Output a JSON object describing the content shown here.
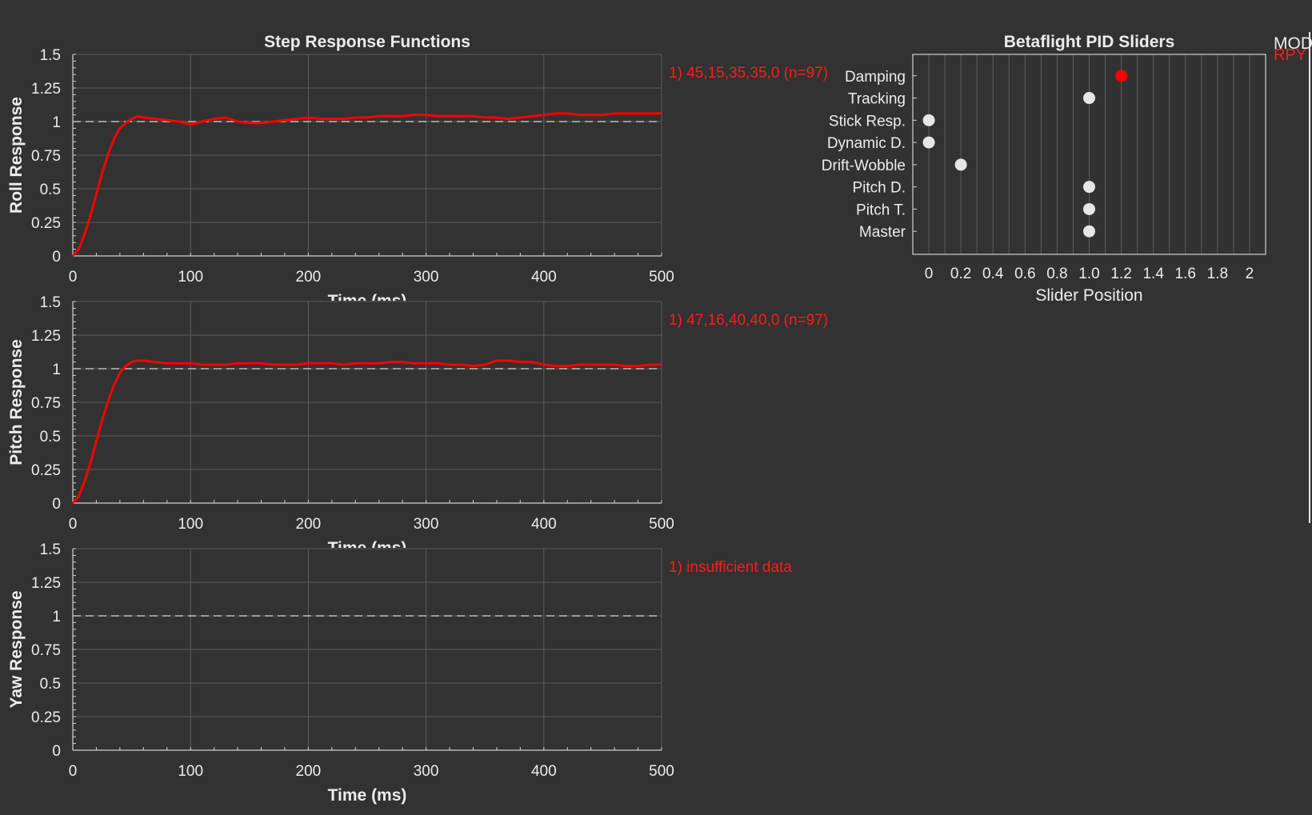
{
  "step_title": "Step Response Functions",
  "slider_title": "Betaflight PID Sliders",
  "corner_labels": {
    "mod": "MOD",
    "rpy": "RPY"
  },
  "colors": {
    "background": "#323232",
    "response": "#ff0000",
    "grid": "#5c5c5c",
    "reference": "#bdbdbd",
    "text": "#ececec",
    "marker_inactive": "#e6e6e6",
    "marker_active": "#ff0000"
  },
  "chart_data": [
    {
      "type": "line",
      "ylabel": "Roll Response",
      "xlabel": "Time (ms)",
      "xlim": [
        0,
        500
      ],
      "ylim": [
        0,
        1.5
      ],
      "xticks": [
        "0",
        "100",
        "200",
        "300",
        "400",
        "500"
      ],
      "yticks": [
        "0",
        "0.25",
        "0.5",
        "0.75",
        "1",
        "1.25",
        "1.5"
      ],
      "reference_line": 1,
      "grid": true,
      "annotation": "1) 45,15,35,35,0  (n=97)",
      "series": [
        {
          "x": [
            0,
            5,
            10,
            15,
            20,
            25,
            30,
            35,
            40,
            45,
            50,
            55,
            60,
            70,
            80,
            90,
            100,
            110,
            120,
            130,
            140,
            150,
            160,
            170,
            180,
            190,
            200,
            210,
            220,
            230,
            240,
            250,
            260,
            270,
            280,
            290,
            300,
            310,
            320,
            330,
            340,
            350,
            360,
            370,
            380,
            390,
            400,
            410,
            420,
            430,
            440,
            450,
            460,
            470,
            480,
            490,
            500
          ],
          "y": [
            0,
            0.05,
            0.16,
            0.3,
            0.46,
            0.62,
            0.76,
            0.87,
            0.95,
            0.99,
            1.02,
            1.04,
            1.03,
            1.02,
            1.01,
            1.0,
            0.98,
            1.0,
            1.02,
            1.03,
            1.0,
            0.99,
            0.99,
            1.0,
            1.01,
            1.02,
            1.03,
            1.02,
            1.02,
            1.02,
            1.03,
            1.03,
            1.04,
            1.04,
            1.04,
            1.05,
            1.05,
            1.04,
            1.04,
            1.04,
            1.04,
            1.03,
            1.03,
            1.02,
            1.03,
            1.04,
            1.05,
            1.06,
            1.06,
            1.05,
            1.05,
            1.05,
            1.06,
            1.06,
            1.06,
            1.06,
            1.06
          ]
        }
      ]
    },
    {
      "type": "line",
      "ylabel": "Pitch Response",
      "xlabel": "Time (ms)",
      "xlim": [
        0,
        500
      ],
      "ylim": [
        0,
        1.5
      ],
      "xticks": [
        "0",
        "100",
        "200",
        "300",
        "400",
        "500"
      ],
      "yticks": [
        "0",
        "0.25",
        "0.5",
        "0.75",
        "1",
        "1.25",
        "1.5"
      ],
      "reference_line": 1,
      "grid": true,
      "annotation": "1) 47,16,40,40,0  (n=97)",
      "series": [
        {
          "x": [
            0,
            5,
            10,
            15,
            20,
            25,
            30,
            35,
            40,
            45,
            50,
            55,
            60,
            70,
            80,
            90,
            100,
            110,
            120,
            130,
            140,
            150,
            160,
            170,
            180,
            190,
            200,
            210,
            220,
            230,
            240,
            250,
            260,
            270,
            280,
            290,
            300,
            310,
            320,
            330,
            340,
            350,
            360,
            370,
            380,
            390,
            400,
            410,
            420,
            430,
            440,
            450,
            460,
            470,
            480,
            490,
            500
          ],
          "y": [
            0,
            0.05,
            0.16,
            0.3,
            0.46,
            0.62,
            0.76,
            0.88,
            0.97,
            1.02,
            1.05,
            1.06,
            1.06,
            1.05,
            1.04,
            1.04,
            1.04,
            1.03,
            1.03,
            1.03,
            1.04,
            1.04,
            1.04,
            1.03,
            1.03,
            1.03,
            1.04,
            1.04,
            1.04,
            1.03,
            1.04,
            1.04,
            1.04,
            1.05,
            1.05,
            1.04,
            1.04,
            1.04,
            1.03,
            1.03,
            1.02,
            1.03,
            1.06,
            1.06,
            1.05,
            1.05,
            1.03,
            1.02,
            1.02,
            1.03,
            1.03,
            1.03,
            1.03,
            1.02,
            1.02,
            1.03,
            1.03
          ]
        }
      ]
    },
    {
      "type": "line",
      "ylabel": "Yaw Response",
      "xlabel": "Time (ms)",
      "xlim": [
        0,
        500
      ],
      "ylim": [
        0,
        1.5
      ],
      "xticks": [
        "0",
        "100",
        "200",
        "300",
        "400",
        "500"
      ],
      "yticks": [
        "0",
        "0.25",
        "0.5",
        "0.75",
        "1",
        "1.25",
        "1.5"
      ],
      "reference_line": 1,
      "grid": true,
      "annotation": "1) insufficient data",
      "series": []
    },
    {
      "type": "scatter",
      "title": "Betaflight PID Sliders",
      "xlabel": "Slider Position",
      "xlim": [
        -0.1,
        2.1
      ],
      "xticks": [
        "0",
        "0.2",
        "0.4",
        "0.6",
        "0.8",
        "1.0",
        "1.2",
        "1.4",
        "1.6",
        "1.8",
        "2"
      ],
      "categories": [
        "Damping",
        "Tracking",
        "Stick Resp.",
        "Dynamic D.",
        "Drift-Wobble",
        "Pitch D.",
        "Pitch T.",
        "Master"
      ],
      "values": [
        1.2,
        1.0,
        0.0,
        0.0,
        0.2,
        1.0,
        1.0,
        1.0
      ],
      "highlighted": [
        "Damping"
      ],
      "grid": true
    }
  ]
}
